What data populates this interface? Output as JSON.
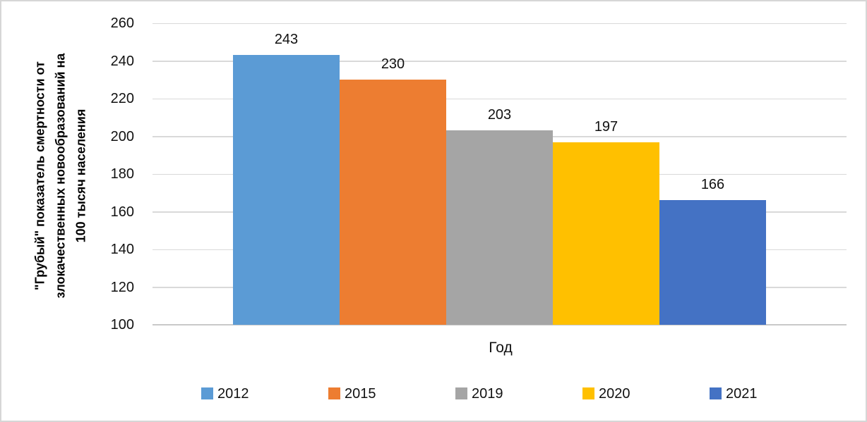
{
  "chart_data": {
    "type": "bar",
    "title": "",
    "categories": [
      "2012",
      "2015",
      "2019",
      "2020",
      "2021"
    ],
    "values": [
      243,
      230,
      203,
      197,
      166
    ],
    "data_labels": [
      "243",
      "230",
      "203",
      "197",
      "166"
    ],
    "series_colors": [
      "#5B9BD5",
      "#ED7D31",
      "#A5A5A5",
      "#FFC000",
      "#4472C4"
    ],
    "xlabel": "Год",
    "ylabel_lines": [
      "\"Грубый\" показатель смертности от",
      "злокачественных новообразований на",
      "100 тысяч населения"
    ],
    "ylim": [
      100,
      260
    ],
    "ytick_step": 20,
    "yticks": [
      100,
      120,
      140,
      160,
      180,
      200,
      220,
      240,
      260
    ],
    "grid": true,
    "legend_position": "bottom"
  },
  "colors": {
    "gridline": "#D9D9D9",
    "axis_line": "#C9C9C9",
    "frame_border": "#D6D6D6",
    "background": "#FFFFFF",
    "text": "#111111"
  }
}
